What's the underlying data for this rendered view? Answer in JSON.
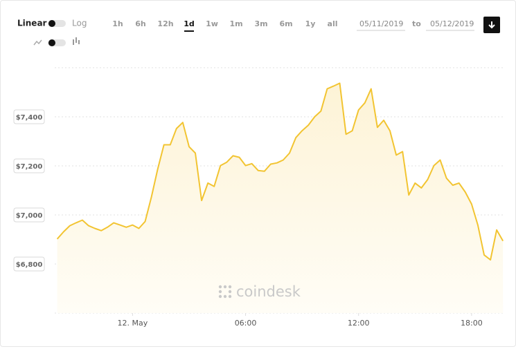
{
  "controls": {
    "linear": "Linear",
    "log": "Log",
    "ranges": [
      "1h",
      "6h",
      "12h",
      "1d",
      "1w",
      "1m",
      "3m",
      "6m",
      "1y",
      "all"
    ],
    "active_range": 3,
    "date_from": "05/11/2019",
    "date_separator": "to",
    "date_to": "05/12/2019",
    "watermark": "coindesk"
  },
  "chart_data": {
    "type": "line",
    "color": "#f2c431",
    "grid": true,
    "x": [
      "2019-05-11 20:00",
      "2019-05-11 20:20",
      "2019-05-11 20:40",
      "2019-05-11 21:00",
      "2019-05-11 21:20",
      "2019-05-11 21:40",
      "2019-05-11 22:00",
      "2019-05-11 22:20",
      "2019-05-11 22:40",
      "2019-05-11 23:00",
      "2019-05-11 23:20",
      "2019-05-11 23:40",
      "2019-05-12 00:00",
      "2019-05-12 00:20",
      "2019-05-12 00:40",
      "2019-05-12 01:00",
      "2019-05-12 01:20",
      "2019-05-12 01:40",
      "2019-05-12 02:00",
      "2019-05-12 02:20",
      "2019-05-12 02:40",
      "2019-05-12 03:00",
      "2019-05-12 03:20",
      "2019-05-12 03:40",
      "2019-05-12 04:00",
      "2019-05-12 04:20",
      "2019-05-12 04:40",
      "2019-05-12 05:00",
      "2019-05-12 05:20",
      "2019-05-12 05:40",
      "2019-05-12 06:00",
      "2019-05-12 06:20",
      "2019-05-12 06:40",
      "2019-05-12 07:00",
      "2019-05-12 07:20",
      "2019-05-12 07:40",
      "2019-05-12 08:00",
      "2019-05-12 08:20",
      "2019-05-12 08:40",
      "2019-05-12 09:00",
      "2019-05-12 09:20",
      "2019-05-12 09:40",
      "2019-05-12 10:00",
      "2019-05-12 10:20",
      "2019-05-12 10:40",
      "2019-05-12 11:00",
      "2019-05-12 11:20",
      "2019-05-12 11:40",
      "2019-05-12 12:00",
      "2019-05-12 12:20",
      "2019-05-12 12:40",
      "2019-05-12 13:00",
      "2019-05-12 13:20",
      "2019-05-12 13:40",
      "2019-05-12 14:00",
      "2019-05-12 14:20",
      "2019-05-12 14:40",
      "2019-05-12 15:00",
      "2019-05-12 15:20",
      "2019-05-12 15:40",
      "2019-05-12 16:00",
      "2019-05-12 16:20",
      "2019-05-12 16:40",
      "2019-05-12 17:00",
      "2019-05-12 17:20",
      "2019-05-12 17:40",
      "2019-05-12 18:00",
      "2019-05-12 18:20",
      "2019-05-12 18:40",
      "2019-05-12 19:00",
      "2019-05-12 19:20",
      "2019-05-12 19:40"
    ],
    "values": [
      6902,
      6931,
      6956,
      6968,
      6979,
      6956,
      6945,
      6936,
      6950,
      6968,
      6959,
      6950,
      6959,
      6945,
      6973,
      7073,
      7187,
      7286,
      7286,
      7352,
      7377,
      7278,
      7252,
      7059,
      7130,
      7116,
      7201,
      7215,
      7241,
      7235,
      7201,
      7209,
      7181,
      7178,
      7207,
      7212,
      7224,
      7252,
      7315,
      7343,
      7366,
      7400,
      7423,
      7514,
      7525,
      7537,
      7329,
      7343,
      7428,
      7457,
      7514,
      7357,
      7386,
      7343,
      7244,
      7258,
      7081,
      7130,
      7110,
      7144,
      7201,
      7224,
      7150,
      7121,
      7130,
      7093,
      7044,
      6959,
      6837,
      6817,
      6939,
      6894
    ],
    "xlim": [
      "2019-05-11 19:52",
      "2019-05-12 19:44"
    ],
    "xticks": [
      {
        "value": "2019-05-12 00:00",
        "label": "12. May"
      },
      {
        "value": "2019-05-12 06:00",
        "label": "06:00"
      },
      {
        "value": "2019-05-12 12:00",
        "label": "12:00"
      },
      {
        "value": "2019-05-12 18:00",
        "label": "18:00"
      }
    ],
    "ylim": [
      6600,
      7600
    ],
    "yticks": [
      {
        "value": 6800,
        "label": "$6,800"
      },
      {
        "value": 7000,
        "label": "$7,000"
      },
      {
        "value": 7200,
        "label": "$7,200"
      },
      {
        "value": 7400,
        "label": "$7,400"
      }
    ]
  }
}
